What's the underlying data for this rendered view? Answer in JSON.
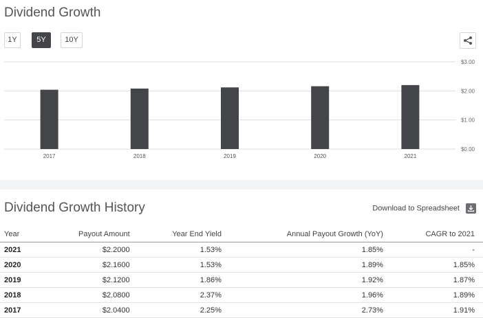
{
  "header": {
    "title": "Dividend Growth",
    "ranges": [
      "1Y",
      "5Y",
      "10Y"
    ],
    "active_range": "5Y"
  },
  "chart_data": {
    "type": "bar",
    "categories": [
      "2017",
      "2018",
      "2019",
      "2020",
      "2021"
    ],
    "values": [
      2.04,
      2.08,
      2.12,
      2.16,
      2.2
    ],
    "y_ticks": [
      "$3.00",
      "$2.00",
      "$1.00",
      "$0.00"
    ],
    "ylim": [
      0,
      3
    ],
    "grid": true,
    "bar_color": "#444548"
  },
  "history": {
    "title": "Dividend Growth History",
    "download_label": "Download to Spreadsheet",
    "columns": [
      "Year",
      "Payout Amount",
      "Year End Yield",
      "Annual Payout Growth (YoY)",
      "CAGR to 2021"
    ],
    "rows": [
      [
        "2021",
        "$2.2000",
        "1.53%",
        "1.85%",
        "-"
      ],
      [
        "2020",
        "$2.1600",
        "1.53%",
        "1.89%",
        "1.85%"
      ],
      [
        "2019",
        "$2.1200",
        "1.86%",
        "1.92%",
        "1.87%"
      ],
      [
        "2018",
        "$2.0800",
        "2.37%",
        "1.96%",
        "1.89%"
      ],
      [
        "2017",
        "$2.0400",
        "2.25%",
        "2.73%",
        "1.91%"
      ]
    ]
  }
}
